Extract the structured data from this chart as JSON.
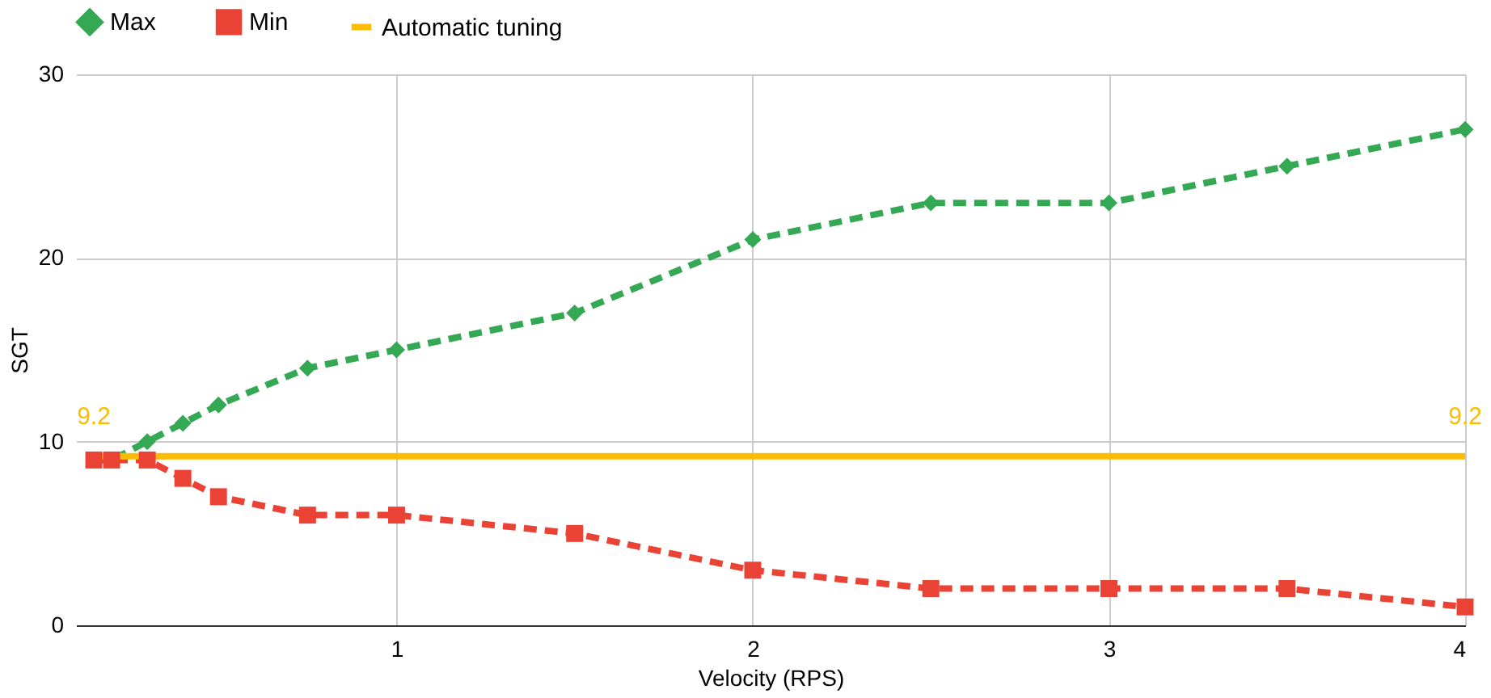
{
  "chart_data": {
    "type": "line",
    "xlabel": "Velocity (RPS)",
    "ylabel": "SGT",
    "x": [
      0.15,
      0.2,
      0.3,
      0.4,
      0.5,
      0.75,
      1,
      1.5,
      2,
      2.5,
      3,
      3.5,
      4
    ],
    "series": [
      {
        "name": "Max",
        "color": "#34a853",
        "marker": "diamond",
        "line_style": "dashed",
        "values": [
          9,
          9,
          10,
          11,
          12,
          14,
          15,
          17,
          21,
          23,
          23,
          25,
          27
        ]
      },
      {
        "name": "Min",
        "color": "#ea4335",
        "marker": "square",
        "line_style": "dashed",
        "values": [
          9,
          9,
          9,
          8,
          7,
          6,
          6,
          5,
          3,
          2,
          2,
          2,
          1
        ]
      },
      {
        "name": "Automatic tuning",
        "color": "#fbbc04",
        "marker": "none",
        "line_style": "solid",
        "x": [
          0.15,
          4
        ],
        "values": [
          9.2,
          9.2
        ],
        "value_labels": [
          "9.2",
          "9.2"
        ]
      }
    ],
    "xlim": [
      0.1,
      4
    ],
    "xticks": [
      1,
      2,
      3,
      4
    ],
    "ylim": [
      0,
      30
    ],
    "yticks": [
      0,
      10,
      20,
      30
    ],
    "grid": true,
    "legend": "top"
  }
}
